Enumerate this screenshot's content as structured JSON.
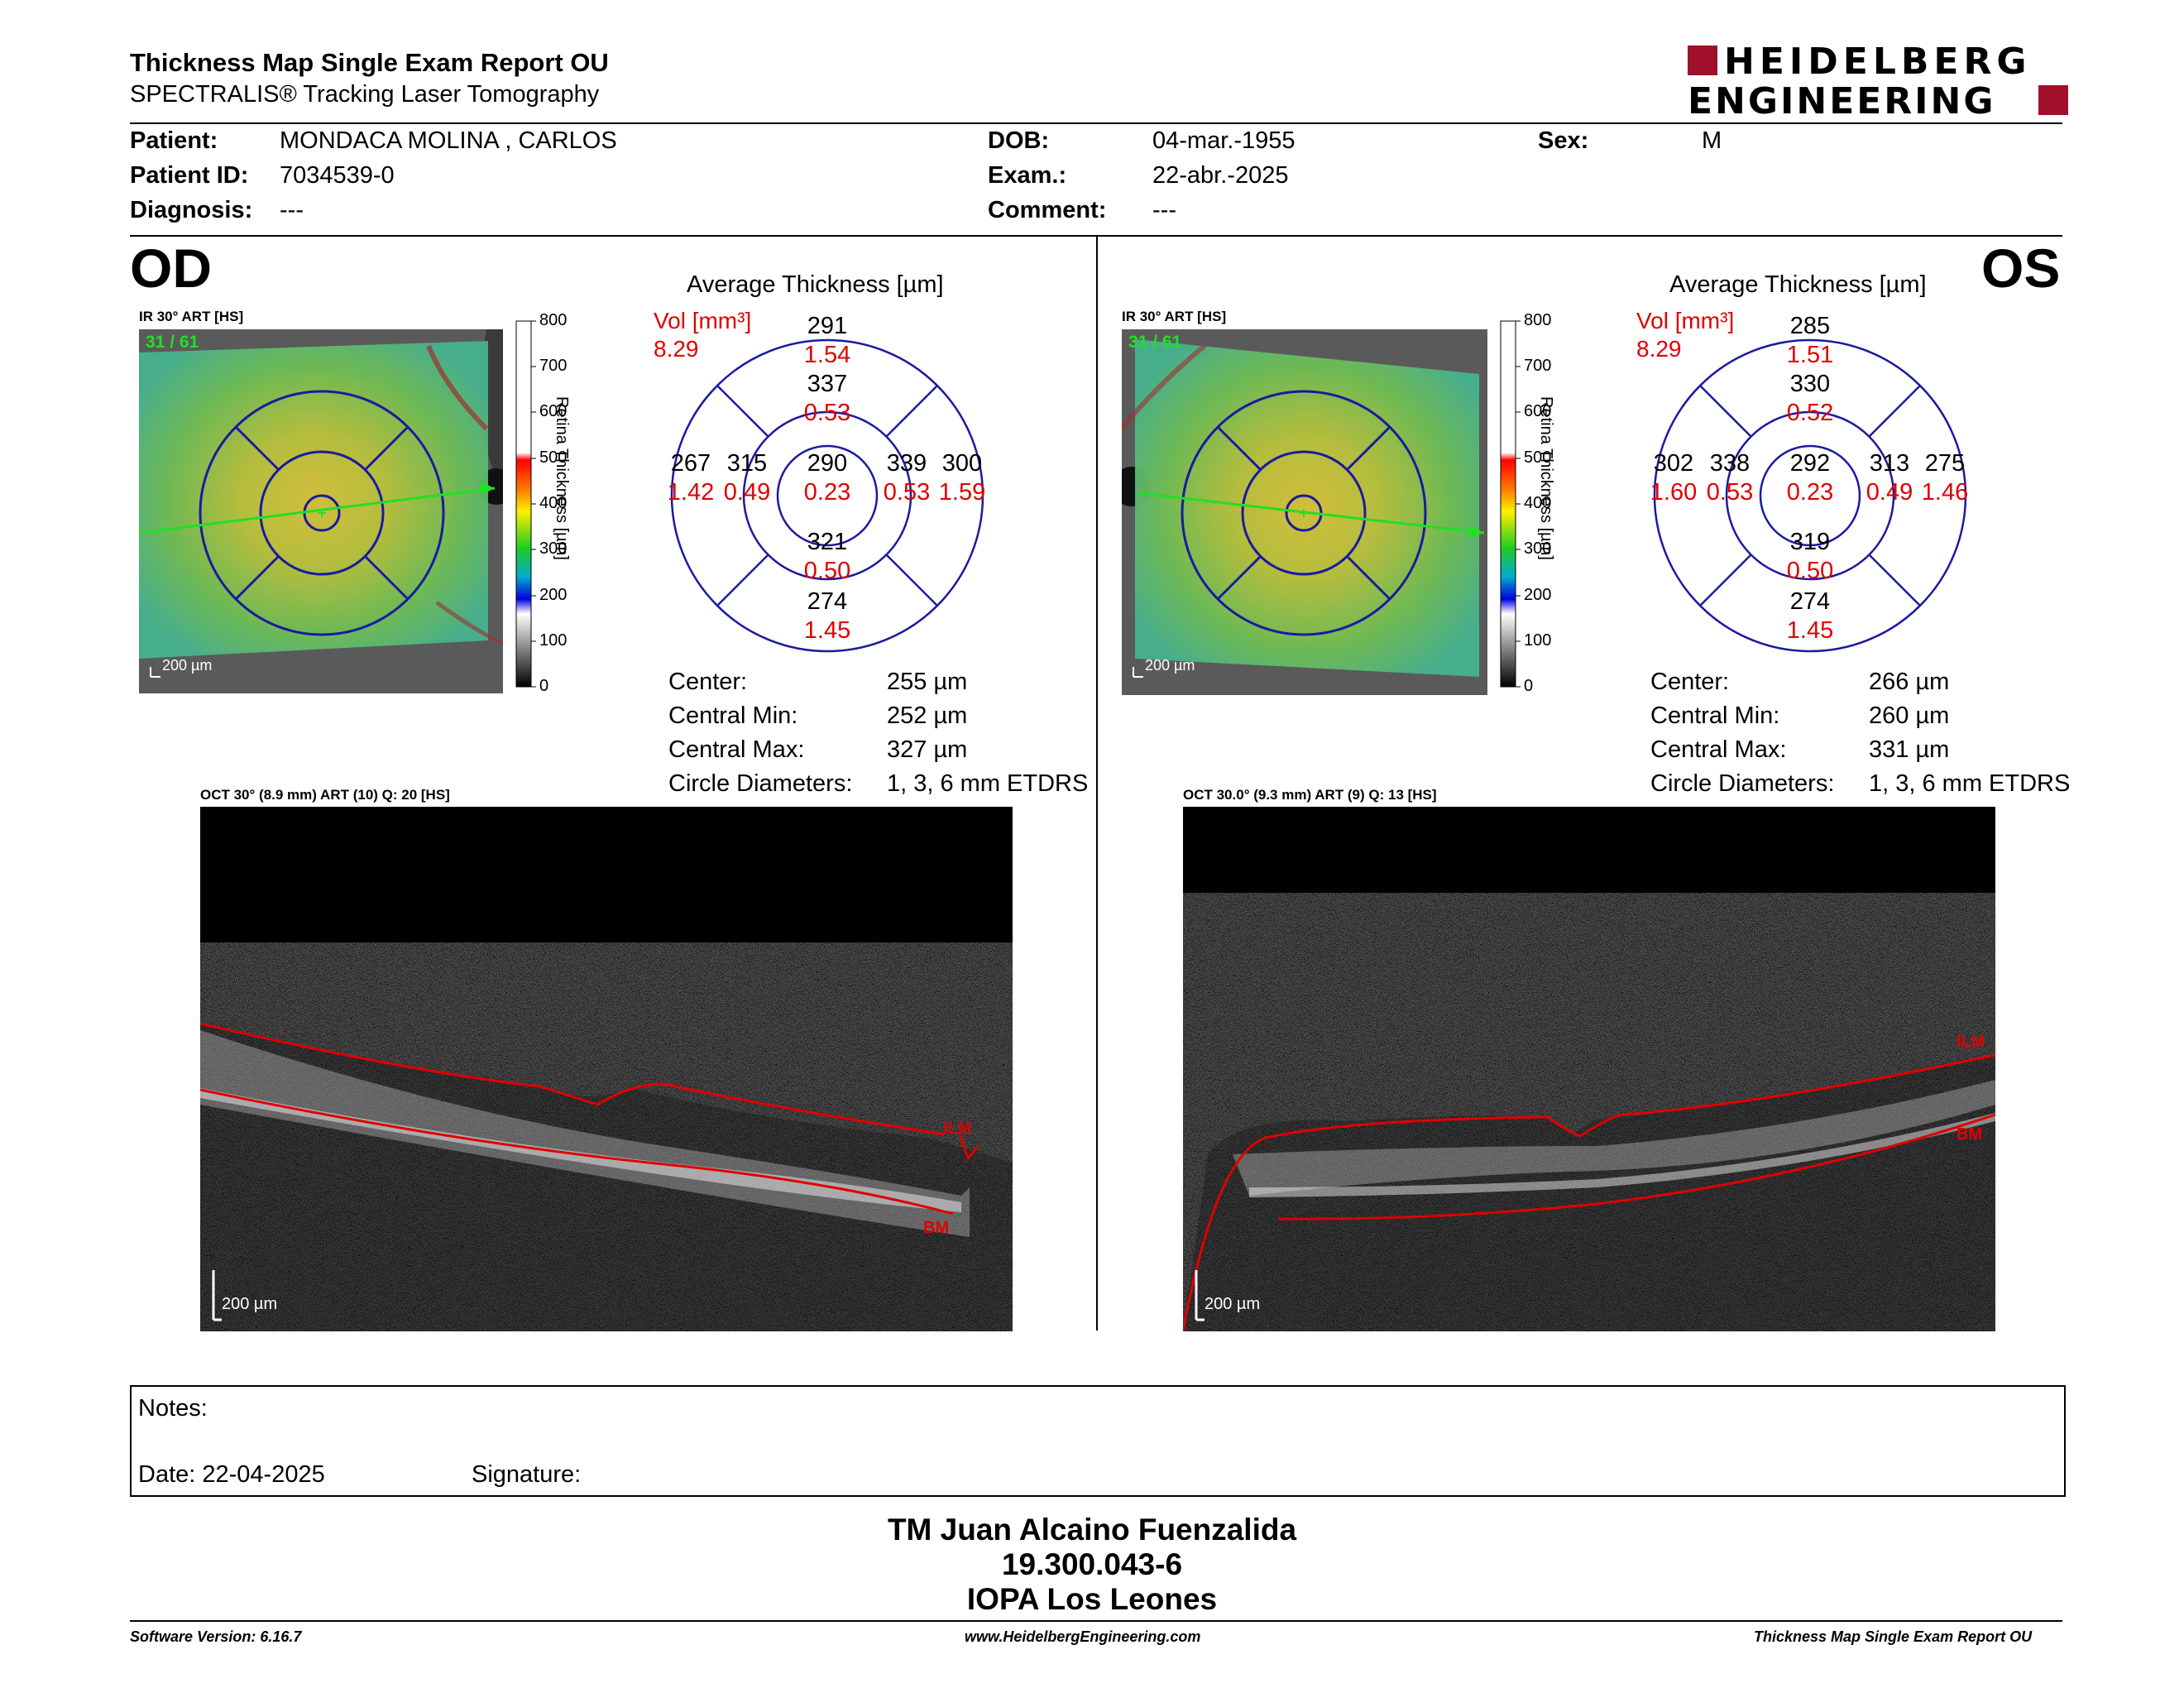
{
  "header": {
    "title": "Thickness Map Single Exam Report OU",
    "subtitle": "SPECTRALIS® Tracking Laser Tomography",
    "logo_top": "HEIDELBERG",
    "logo_bottom": "ENGINEERING"
  },
  "patient": {
    "patient_label": "Patient:",
    "patient_value": "MONDACA MOLINA , CARLOS",
    "id_label": "Patient ID:",
    "id_value": "7034539-0",
    "diagnosis_label": "Diagnosis:",
    "diagnosis_value": "---",
    "dob_label": "DOB:",
    "dob_value": "04-mar.-1955",
    "exam_label": "Exam.:",
    "exam_value": "22-abr.-2025",
    "comment_label": "Comment:",
    "comment_value": "---",
    "sex_label": "Sex:",
    "sex_value": "M"
  },
  "colorbar": {
    "ticks": [
      "800",
      "700",
      "600",
      "500",
      "400",
      "300",
      "200",
      "100",
      "0"
    ],
    "axis_label": "Retina Thickness [µm]"
  },
  "od": {
    "eye": "OD",
    "ir_label": "IR 30° ART [HS]",
    "frame_count": "31 / 61",
    "scale_label": "200 µm",
    "avg_title": "Average Thickness [µm]",
    "vol_label": "Vol [mm³]",
    "vol_value": "8.29",
    "etdrs": {
      "center": {
        "t": "290",
        "v": "0.23"
      },
      "inner_sup": {
        "t": "337",
        "v": "0.53"
      },
      "inner_inf": {
        "t": "321",
        "v": "0.50"
      },
      "inner_left": {
        "t": "315",
        "v": "0.49"
      },
      "inner_right": {
        "t": "339",
        "v": "0.53"
      },
      "outer_sup": {
        "t": "291",
        "v": "1.54"
      },
      "outer_inf": {
        "t": "274",
        "v": "1.45"
      },
      "outer_left": {
        "t": "267",
        "v": "1.42"
      },
      "outer_right": {
        "t": "300",
        "v": "1.59"
      }
    },
    "stats": {
      "center_label": "Center:",
      "center_value": "255 µm",
      "min_label": "Central Min:",
      "min_value": "252 µm",
      "max_label": "Central Max:",
      "max_value": "327 µm",
      "diam_label": "Circle Diameters:",
      "diam_value": "1, 3, 6 mm ETDRS"
    },
    "oct_label": "OCT 30° (8.9 mm) ART (10) Q: 20 [HS]",
    "oct_scale": "200 µm",
    "ilm": "ILM",
    "bm": "BM"
  },
  "os": {
    "eye": "OS",
    "ir_label": "IR 30° ART [HS]",
    "frame_count": "31 / 61",
    "scale_label": "200 µm",
    "avg_title": "Average Thickness [µm]",
    "vol_label": "Vol [mm³]",
    "vol_value": "8.29",
    "etdrs": {
      "center": {
        "t": "292",
        "v": "0.23"
      },
      "inner_sup": {
        "t": "330",
        "v": "0.52"
      },
      "inner_inf": {
        "t": "319",
        "v": "0.50"
      },
      "inner_left": {
        "t": "338",
        "v": "0.53"
      },
      "inner_right": {
        "t": "313",
        "v": "0.49"
      },
      "outer_sup": {
        "t": "285",
        "v": "1.51"
      },
      "outer_inf": {
        "t": "274",
        "v": "1.45"
      },
      "outer_left": {
        "t": "302",
        "v": "1.60"
      },
      "outer_right": {
        "t": "275",
        "v": "1.46"
      }
    },
    "stats": {
      "center_label": "Center:",
      "center_value": "266 µm",
      "min_label": "Central Min:",
      "min_value": "260 µm",
      "max_label": "Central Max:",
      "max_value": "331 µm",
      "diam_label": "Circle Diameters:",
      "diam_value": "1, 3, 6 mm ETDRS"
    },
    "oct_label": "OCT 30.0° (9.3 mm) ART (9) Q: 13 [HS]",
    "oct_scale": "200 µm",
    "ilm": "ILM",
    "bm": "BM"
  },
  "notes": {
    "notes_label": "Notes:",
    "date_label": "Date: 22-04-2025",
    "signature_label": "Signature:"
  },
  "signatory": {
    "name": "TM Juan Alcaino Fuenzalida",
    "id": "19.300.043-6",
    "org": "IOPA Los Leones"
  },
  "footer": {
    "software": "Software Version: 6.16.7",
    "website": "www.HeidelbergEngineering.com",
    "report": "Thickness Map Single Exam Report OU"
  }
}
